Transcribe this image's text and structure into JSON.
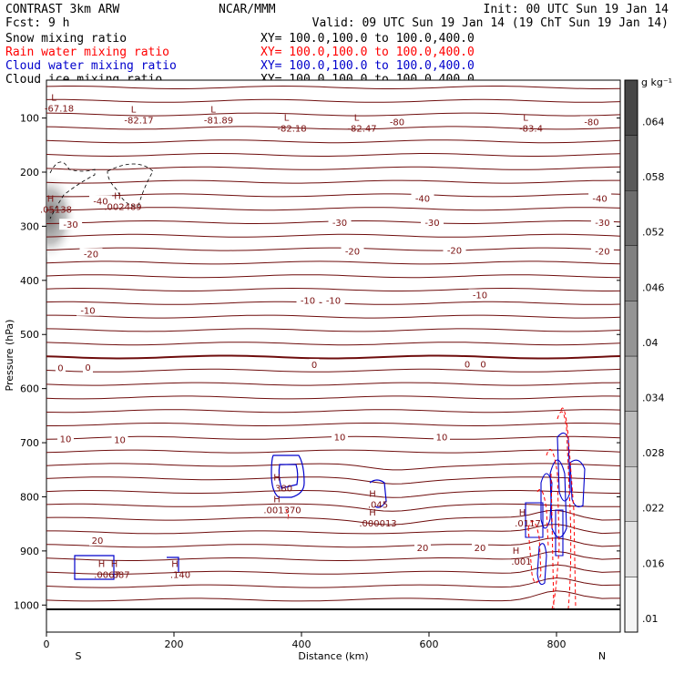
{
  "header": {
    "left_title": "CONTRAST  3km ARW",
    "center_title": "NCAR/MMM",
    "init": "Init: 00 UTC Sun 19 Jan 14",
    "fcst": "Fcst:    9 h",
    "valid": "Valid: 09 UTC Sun 19 Jan 14 (19 ChT Sun 19 Jan 14)"
  },
  "legend": [
    {
      "label": "Snow mixing ratio",
      "xy": "",
      "color": "#000000"
    },
    {
      "label": "Rain water mixing ratio",
      "xy": "XY= 100.0,100.0 to 100.0,400.0",
      "color": "#ff0000"
    },
    {
      "label": "Cloud water mixing ratio",
      "xy": "XY= 100.0,100.0 to 100.0,400.0",
      "color": "#0000cc"
    },
    {
      "label": "Cloud ice mixing ratio",
      "xy": "XY= 100.0,100.0 to 100.0,400.0",
      "color": "#000000"
    }
  ],
  "snow_xy": "XY= 100.0,100.0 to 100.0,400.0",
  "chart_data": {
    "type": "contour",
    "xlabel": "Distance (km)",
    "ylabel": "Pressure (hPa)",
    "xlim": [
      0,
      900
    ],
    "ylim": [
      1050,
      30
    ],
    "x_ticks": [
      0,
      200,
      400,
      600,
      800
    ],
    "y_ticks": [
      100,
      200,
      300,
      400,
      500,
      600,
      700,
      800,
      900,
      1000
    ],
    "x_end_labels": {
      "left": "S",
      "right": "N"
    },
    "colorbar": {
      "unit": "g kg⁻¹",
      "labels": [
        ".01",
        ".016",
        ".022",
        ".028",
        ".034",
        ".04",
        ".046",
        ".052",
        ".058",
        ".064"
      ]
    },
    "temperature_contours": [
      {
        "label": "-80",
        "x": 550,
        "p": 108
      },
      {
        "label": "-80",
        "x": 855,
        "p": 108
      },
      {
        "label": "-40",
        "x": 85,
        "p": 255
      },
      {
        "label": "-40",
        "x": 590,
        "p": 250
      },
      {
        "label": "-40",
        "x": 868,
        "p": 250
      },
      {
        "label": "-30",
        "x": 38,
        "p": 298
      },
      {
        "label": "-30",
        "x": 460,
        "p": 294
      },
      {
        "label": "-30",
        "x": 605,
        "p": 294
      },
      {
        "label": "-30",
        "x": 872,
        "p": 294
      },
      {
        "label": "-20",
        "x": 70,
        "p": 352
      },
      {
        "label": "-20",
        "x": 480,
        "p": 347
      },
      {
        "label": "-20",
        "x": 640,
        "p": 346
      },
      {
        "label": "-20",
        "x": 872,
        "p": 347
      },
      {
        "label": "-10",
        "x": 65,
        "p": 457
      },
      {
        "label": "-10",
        "x": 410,
        "p": 438
      },
      {
        "label": "-10",
        "x": 450,
        "p": 438
      },
      {
        "label": "-10",
        "x": 680,
        "p": 428
      },
      {
        "label": "0",
        "x": 22,
        "p": 563
      },
      {
        "label": "0",
        "x": 65,
        "p": 562
      },
      {
        "label": "0",
        "x": 420,
        "p": 557
      },
      {
        "label": "0",
        "x": 660,
        "p": 556
      },
      {
        "label": "0",
        "x": 685,
        "p": 556
      },
      {
        "label": "10",
        "x": 30,
        "p": 694
      },
      {
        "label": "10",
        "x": 115,
        "p": 696
      },
      {
        "label": "10",
        "x": 460,
        "p": 691
      },
      {
        "label": "10",
        "x": 620,
        "p": 691
      },
      {
        "label": "20",
        "x": 80,
        "p": 882
      },
      {
        "label": "20",
        "x": 590,
        "p": 895
      },
      {
        "label": "20",
        "x": 680,
        "p": 895
      }
    ],
    "extrema": [
      {
        "type": "L",
        "value": "-67.18",
        "x": 20,
        "p": 78,
        "color": "#7a1010"
      },
      {
        "type": "L",
        "value": "-82.17",
        "x": 145,
        "p": 100,
        "color": "#7a1010"
      },
      {
        "type": "L",
        "value": "-81.89",
        "x": 270,
        "p": 100,
        "color": "#7a1010"
      },
      {
        "type": "L",
        "value": "-82.18",
        "x": 385,
        "p": 115,
        "color": "#7a1010"
      },
      {
        "type": "L",
        "value": "-82.47",
        "x": 495,
        "p": 115,
        "color": "#7a1010"
      },
      {
        "type": "L",
        "value": "-83.4",
        "x": 760,
        "p": 115,
        "color": "#7a1010"
      },
      {
        "type": "H",
        "value": ".05138",
        "x": 15,
        "p": 265,
        "color": "#000000"
      },
      {
        "type": "H",
        "value": ".002489",
        "x": 120,
        "p": 260,
        "color": "#000000"
      },
      {
        "type": "H",
        "value": ".380",
        "x": 370,
        "p": 780,
        "color": "#0000cc"
      },
      {
        "type": "H",
        "value": ".001370",
        "x": 370,
        "p": 820,
        "color": "#ff0000"
      },
      {
        "type": "H",
        "value": ".045",
        "x": 520,
        "p": 810,
        "color": "#0000cc"
      },
      {
        "type": "H",
        "value": ".000013",
        "x": 520,
        "p": 845,
        "color": "#ff0000"
      },
      {
        "type": "H",
        "value": ".0117",
        "x": 755,
        "p": 845,
        "color": "#0000cc"
      },
      {
        "type": "H",
        "value": ".001",
        "x": 745,
        "p": 915,
        "color": "#ff0000"
      },
      {
        "type": "H",
        "value": ".0067",
        "x": 95,
        "p": 940,
        "color": "#ff0000"
      },
      {
        "type": "H",
        "value": ".387",
        "x": 115,
        "p": 940,
        "color": "#0000cc"
      },
      {
        "type": "H",
        "value": ".140",
        "x": 210,
        "p": 940,
        "color": "#0000cc"
      }
    ]
  }
}
